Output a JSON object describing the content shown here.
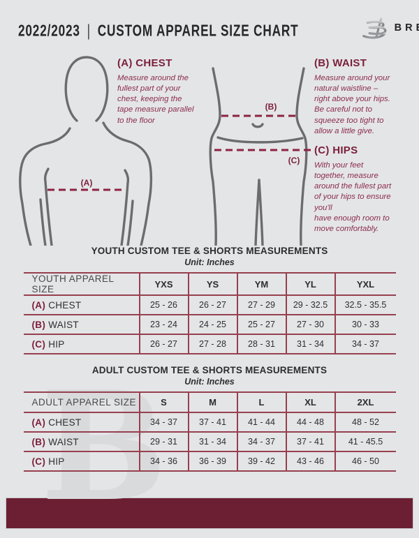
{
  "colors": {
    "background": "#e4e5e7",
    "accent_maroon": "#7b1f3a",
    "dash_maroon": "#8c2342",
    "table_line": "#96404f",
    "bottom_bar": "#6c1f33"
  },
  "header": {
    "year": "2022/2023",
    "separator": "|",
    "title": "CUSTOM APPAREL SIZE CHART",
    "brand": "BREAKAWAY"
  },
  "guide": {
    "markers": {
      "a": "(A)",
      "b": "(B)",
      "c": "(C)"
    },
    "a": {
      "heading": "(A) CHEST",
      "body": "Measure around the\nfullest part of your\nchest, keeping the\ntape measure parallel\nto the floor"
    },
    "b": {
      "heading": "(B) WAIST",
      "body": "Measure around your\nnatural waistline –\nright above your hips.\nBe careful not to\nsqueeze too tight to\nallow a little give."
    },
    "c": {
      "heading": "(C) HIPS",
      "body": "With your feet\ntogether, measure\naround the fullest part\nof your hips to ensure\nyou'll\nhave enough room to\nmove comfortably."
    }
  },
  "youth_table": {
    "title": "YOUTH CUSTOM TEE & SHORTS MEASUREMENTS",
    "unit": "Unit: Inches",
    "header": [
      "YOUTH APPAREL SIZE",
      "YXS",
      "YS",
      "YM",
      "YL",
      "YXL"
    ],
    "rows": [
      {
        "prefix": "(A)",
        "label": "CHEST",
        "values": [
          "25 - 26",
          "26 - 27",
          "27 - 29",
          "29 - 32.5",
          "32.5 - 35.5"
        ]
      },
      {
        "prefix": "(B)",
        "label": "WAIST",
        "values": [
          "23 - 24",
          "24 - 25",
          "25 - 27",
          "27 - 30",
          "30 - 33"
        ]
      },
      {
        "prefix": "(C)",
        "label": "HIP",
        "values": [
          "26 - 27",
          "27 - 28",
          "28 - 31",
          "31 - 34",
          "34 - 37"
        ]
      }
    ]
  },
  "adult_table": {
    "title": "ADULT CUSTOM TEE & SHORTS MEASUREMENTS",
    "unit": "Unit: Inches",
    "header": [
      "ADULT APPAREL SIZE",
      "S",
      "M",
      "L",
      "XL",
      "2XL"
    ],
    "rows": [
      {
        "prefix": "(A)",
        "label": "CHEST",
        "values": [
          "34 - 37",
          "37 - 41",
          "41 - 44",
          "44 - 48",
          "48 - 52"
        ]
      },
      {
        "prefix": "(B)",
        "label": "WAIST",
        "values": [
          "29 - 31",
          "31 - 34",
          "34 - 37",
          "37 - 41",
          "41 - 45.5"
        ]
      },
      {
        "prefix": "(C)",
        "label": "HIP",
        "values": [
          "34 - 36",
          "36 - 39",
          "39 - 42",
          "43 - 46",
          "46 - 50"
        ]
      }
    ]
  },
  "watermark": {
    "letter": "B"
  }
}
